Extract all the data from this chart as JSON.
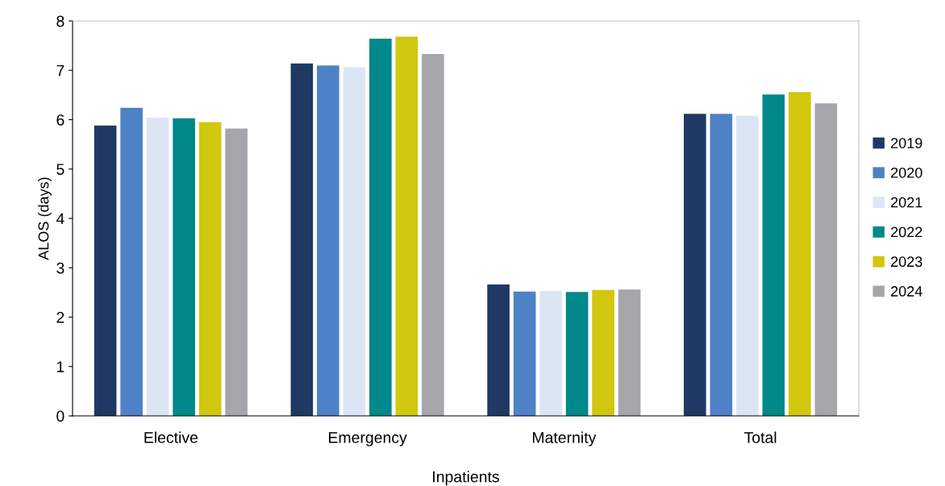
{
  "chart_data": {
    "type": "bar",
    "xlabel": "Inpatients",
    "ylabel": "ALOS (days)",
    "categories": [
      "Elective",
      "Emergency",
      "Maternity",
      "Total"
    ],
    "series": [
      {
        "name": "2019",
        "color": "#203864",
        "values": [
          5.88,
          7.14,
          2.66,
          6.12
        ]
      },
      {
        "name": "2020",
        "color": "#4f81c7",
        "values": [
          6.24,
          7.1,
          2.52,
          6.12
        ]
      },
      {
        "name": "2021",
        "color": "#dce5f3",
        "values": [
          6.04,
          7.06,
          2.53,
          6.08
        ]
      },
      {
        "name": "2022",
        "color": "#00888a",
        "values": [
          6.03,
          7.64,
          2.51,
          6.51
        ]
      },
      {
        "name": "2023",
        "color": "#d0c70e",
        "values": [
          5.95,
          7.68,
          2.55,
          6.56
        ]
      },
      {
        "name": "2024",
        "color": "#a6a5aa",
        "values": [
          5.82,
          7.33,
          2.56,
          6.33
        ]
      }
    ],
    "ylim": [
      0,
      8
    ],
    "yticks": [
      0,
      1,
      2,
      3,
      4,
      5,
      6,
      7,
      8
    ],
    "grid": false,
    "legend": "right"
  }
}
